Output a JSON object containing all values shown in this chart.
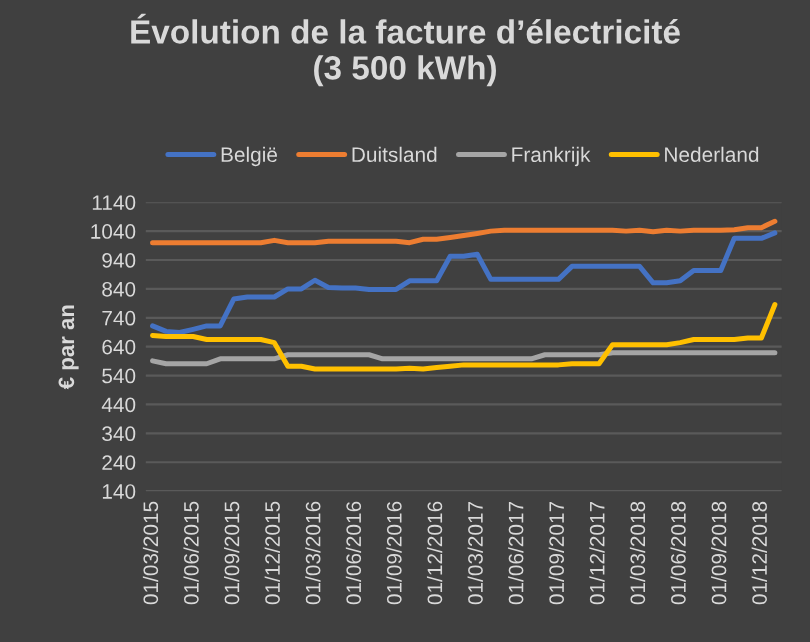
{
  "chart_data": {
    "type": "line",
    "title": "Évolution de la facture d’électricité\n(3 500 kWh)",
    "ylabel": "€ par an",
    "categories": [
      "01/03/2015",
      null,
      null,
      "01/06/2015",
      null,
      null,
      "01/09/2015",
      null,
      null,
      "01/12/2015",
      null,
      null,
      "01/03/2016",
      null,
      null,
      "01/06/2016",
      null,
      null,
      "01/09/2016",
      null,
      null,
      "01/12/2016",
      null,
      null,
      "01/03/2017",
      null,
      null,
      "01/06/2017",
      null,
      null,
      "01/09/2017",
      null,
      null,
      "01/12/2017",
      null,
      null,
      "01/03/2018",
      null,
      null,
      "01/06/2018",
      null,
      null,
      "01/09/2018",
      null,
      null,
      "01/12/2018",
      null
    ],
    "series": [
      {
        "name": "België",
        "color": "#4472c4",
        "values": [
          712,
          693,
          689,
          700,
          712,
          712,
          805,
          812,
          812,
          812,
          840,
          840,
          870,
          845,
          843,
          843,
          838,
          838,
          838,
          868,
          868,
          868,
          953,
          953,
          960,
          873,
          873,
          873,
          873,
          873,
          873,
          918,
          918,
          918,
          918,
          918,
          918,
          861,
          861,
          868,
          904,
          904,
          904,
          1015,
          1015,
          1015,
          1034
        ]
      },
      {
        "name": "Duitsland",
        "color": "#ed7d31",
        "values": [
          1000,
          1000,
          1000,
          1000,
          1000,
          1000,
          1000,
          1000,
          1000,
          1008,
          1000,
          1000,
          1000,
          1005,
          1005,
          1005,
          1005,
          1005,
          1005,
          1000,
          1012,
          1012,
          1018,
          1025,
          1032,
          1040,
          1043,
          1043,
          1043,
          1043,
          1043,
          1043,
          1043,
          1043,
          1043,
          1040,
          1043,
          1038,
          1043,
          1040,
          1043,
          1043,
          1043,
          1045,
          1052,
          1052,
          1074
        ]
      },
      {
        "name": "Frankrijk",
        "color": "#a5a5a5",
        "values": [
          591,
          581,
          581,
          581,
          581,
          598,
          598,
          598,
          598,
          598,
          612,
          612,
          612,
          612,
          612,
          612,
          612,
          598,
          598,
          598,
          598,
          598,
          598,
          598,
          598,
          598,
          598,
          598,
          598,
          612,
          612,
          612,
          612,
          612,
          619,
          619,
          619,
          619,
          619,
          619,
          619,
          619,
          619,
          619,
          619,
          619,
          619
        ]
      },
      {
        "name": "Nederland",
        "color": "#ffc000",
        "values": [
          679,
          675,
          675,
          675,
          665,
          665,
          665,
          665,
          665,
          654,
          572,
          572,
          563,
          563,
          563,
          563,
          563,
          563,
          563,
          565,
          563,
          568,
          572,
          577,
          577,
          577,
          577,
          577,
          577,
          577,
          577,
          581,
          581,
          581,
          647,
          647,
          647,
          647,
          647,
          654,
          665,
          665,
          665,
          665,
          670,
          670,
          786
        ]
      }
    ],
    "ylim": [
      140,
      1140
    ],
    "yticks": [
      140,
      240,
      340,
      440,
      540,
      640,
      740,
      840,
      940,
      1040,
      1140
    ],
    "grid": "y",
    "legend": "top",
    "line_style": "solid",
    "marker": "none"
  }
}
